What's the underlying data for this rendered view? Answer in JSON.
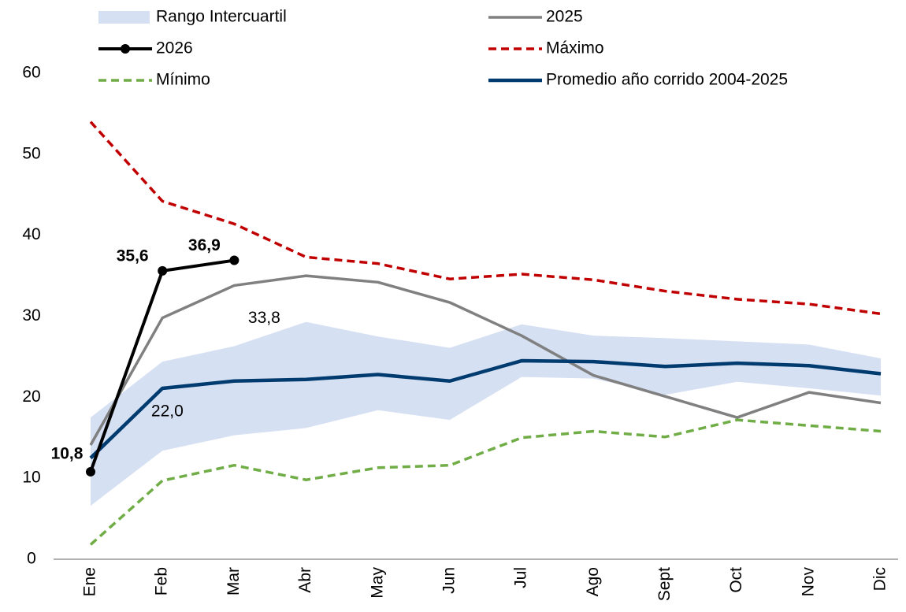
{
  "chart_data": {
    "type": "line",
    "categories": [
      "Ene",
      "Feb",
      "Mar",
      "Abr",
      "May",
      "Jun",
      "Jul",
      "Ago",
      "Sept",
      "Oct",
      "Nov",
      "Dic"
    ],
    "ylim": [
      0,
      60
    ],
    "yticks": [
      0,
      10,
      20,
      30,
      40,
      50,
      60
    ],
    "series": [
      {
        "name": "Rango Intercuartil",
        "color": "#d6e0f3",
        "band": true,
        "low": [
          6.6,
          13.4,
          15.3,
          16.2,
          18.4,
          17.2,
          22.5,
          22.3,
          20.3,
          21.9,
          21.1,
          20.2
        ],
        "high": [
          17.5,
          24.4,
          26.3,
          29.3,
          27.5,
          26.1,
          29.0,
          27.6,
          27.3,
          26.9,
          26.5,
          24.8
        ]
      },
      {
        "name": "2025",
        "color": "#808080",
        "width": 3.5,
        "values": [
          14.1,
          29.8,
          33.8,
          35.0,
          34.2,
          31.7,
          27.6,
          22.7,
          20.1,
          17.5,
          20.6,
          19.3
        ],
        "value_labels": [
          null,
          null,
          "33,8",
          null,
          null,
          null,
          null,
          null,
          null,
          null,
          null,
          null
        ]
      },
      {
        "name": "2026",
        "color": "#000000",
        "width": 4,
        "markers": true,
        "values": [
          10.8,
          35.6,
          36.9,
          null,
          null,
          null,
          null,
          null,
          null,
          null,
          null,
          null
        ],
        "value_labels": [
          "10,8",
          "35,6",
          "36,9",
          null,
          null,
          null,
          null,
          null,
          null,
          null,
          null,
          null
        ]
      },
      {
        "name": "Máximo",
        "color": "#c00000",
        "width": 3.5,
        "dash": true,
        "values": [
          54.0,
          44.2,
          41.4,
          37.3,
          36.5,
          34.6,
          35.2,
          34.5,
          33.1,
          32.1,
          31.5,
          30.3
        ]
      },
      {
        "name": "Mínimo",
        "color": "#70ad47",
        "width": 3.5,
        "dash": true,
        "values": [
          1.8,
          9.7,
          11.6,
          9.8,
          11.3,
          11.6,
          15.0,
          15.8,
          15.1,
          17.2,
          16.5,
          15.8
        ]
      },
      {
        "name": "Promedio año corrido 2004-2025",
        "color": "#003b6f",
        "width": 4.5,
        "values": [
          12.5,
          21.1,
          22.0,
          22.2,
          22.8,
          22.0,
          24.5,
          24.4,
          23.8,
          24.2,
          23.9,
          22.9
        ],
        "value_labels": [
          null,
          null,
          "22,0",
          null,
          null,
          null,
          null,
          null,
          null,
          null,
          null,
          null
        ]
      }
    ]
  }
}
